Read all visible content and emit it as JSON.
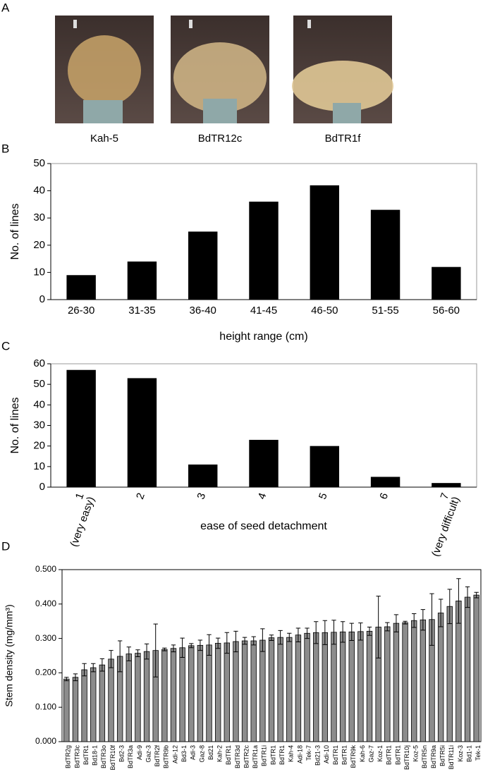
{
  "panel_a": {
    "panel_label": "A",
    "captions": [
      "Kah-5",
      "BdTR12c",
      "BdTR1f"
    ]
  },
  "chart_data": [
    {
      "type": "bar",
      "panel_label": "B",
      "x_label": "height range (cm)",
      "y_label": "No. of lines",
      "categories": [
        "26-30",
        "31-35",
        "36-40",
        "41-45",
        "46-50",
        "51-55",
        "56-60"
      ],
      "values": [
        9,
        14,
        25,
        36,
        42,
        33,
        12
      ],
      "color": "#000000",
      "ylim": [
        0,
        50
      ],
      "yticks": [
        0,
        10,
        20,
        30,
        40,
        50
      ],
      "grid": false
    },
    {
      "type": "bar",
      "panel_label": "C",
      "x_label": "ease of seed detachment",
      "y_label": "No. of lines",
      "categories": [
        "1",
        "2",
        "3",
        "4",
        "5",
        "6",
        "7"
      ],
      "annotations": [
        {
          "category": "1",
          "text": "(very easy)"
        },
        {
          "category": "7",
          "text": "(very difficult)"
        }
      ],
      "values": [
        57,
        53,
        11,
        23,
        20,
        5,
        2
      ],
      "color": "#000000",
      "ylim": [
        0,
        60
      ],
      "yticks": [
        0,
        10,
        20,
        30,
        40,
        50,
        60
      ],
      "grid": false
    },
    {
      "type": "bar",
      "panel_label": "D",
      "y_label": "Stem density (mg/mm³)",
      "categories": [
        "BdTR2g",
        "BdTR3c",
        "BdTR1",
        "Bd18-1",
        "BdTR3o",
        "BdTR10f",
        "Bd2-3",
        "BdTR3a",
        "Adi-9",
        "Gaz-3",
        "BdTR2f",
        "BdTR9b",
        "Adi-12",
        "Bd3-1",
        "Adi-3",
        "Gaz-8",
        "Bd21",
        "Kah-2",
        "BdTR1",
        "BdTR3d",
        "BdTR2c",
        "BdTR1a",
        "BdTR1i",
        "BdTR1",
        "BdTR1",
        "Kah-4",
        "Adi-18",
        "Tek-7",
        "Bd21-3",
        "Adi-10",
        "BdTR1",
        "BdTR1",
        "BdTR9k",
        "Kah-6",
        "Gaz-7",
        "Koz-1",
        "BdTR1",
        "BdTR1",
        "BdTR10j",
        "Koz-5",
        "BdTR5n",
        "BdTR9a",
        "BdTR5i",
        "BdTR11i",
        "Koz-3",
        "Bd1-1",
        "Tek-1"
      ],
      "values": [
        0.182,
        0.187,
        0.209,
        0.215,
        0.223,
        0.24,
        0.248,
        0.255,
        0.257,
        0.262,
        0.265,
        0.268,
        0.271,
        0.273,
        0.279,
        0.28,
        0.281,
        0.286,
        0.287,
        0.291,
        0.293,
        0.293,
        0.295,
        0.302,
        0.303,
        0.303,
        0.31,
        0.315,
        0.317,
        0.317,
        0.318,
        0.319,
        0.319,
        0.32,
        0.321,
        0.333,
        0.334,
        0.344,
        0.346,
        0.352,
        0.354,
        0.355,
        0.374,
        0.393,
        0.409,
        0.42,
        0.426
      ],
      "errors": [
        0.005,
        0.01,
        0.018,
        0.012,
        0.018,
        0.025,
        0.045,
        0.02,
        0.01,
        0.022,
        0.077,
        0.004,
        0.01,
        0.028,
        0.006,
        0.015,
        0.03,
        0.015,
        0.03,
        0.03,
        0.01,
        0.012,
        0.033,
        0.008,
        0.02,
        0.012,
        0.02,
        0.015,
        0.032,
        0.035,
        0.035,
        0.03,
        0.025,
        0.025,
        0.012,
        0.09,
        0.012,
        0.025,
        0.004,
        0.02,
        0.03,
        0.075,
        0.04,
        0.05,
        0.065,
        0.03,
        0.008
      ],
      "color": "#8c8c8c",
      "edge_color": "#000000",
      "ylim": [
        0,
        0.5
      ],
      "yticks": [
        {
          "value": 0,
          "label": "0.000"
        },
        {
          "value": 0.1,
          "label": "0.100"
        },
        {
          "value": 0.2,
          "label": "0.200"
        },
        {
          "value": 0.3,
          "label": "0.300"
        },
        {
          "value": 0.4,
          "label": "0.400"
        },
        {
          "value": 0.5,
          "label": "0.500"
        }
      ],
      "grid": false
    }
  ]
}
